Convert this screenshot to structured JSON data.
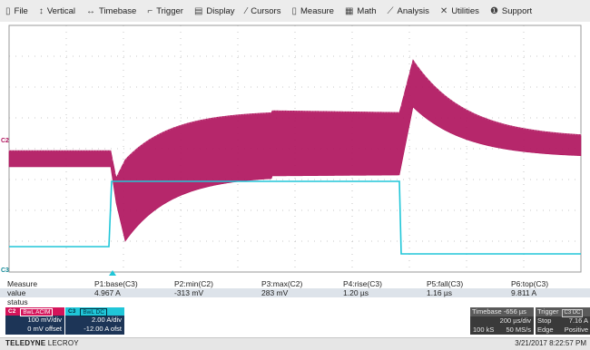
{
  "menu": [
    {
      "label": "File",
      "icon": "file-icon",
      "glyph": "▯"
    },
    {
      "label": "Vertical",
      "icon": "vertical-arrows-icon",
      "glyph": "↕"
    },
    {
      "label": "Timebase",
      "icon": "horizontal-arrows-icon",
      "glyph": "↔"
    },
    {
      "label": "Trigger",
      "icon": "trigger-icon",
      "glyph": "⌐"
    },
    {
      "label": "Display",
      "icon": "display-icon",
      "glyph": "▤"
    },
    {
      "label": "Cursors",
      "icon": "cursor-icon",
      "glyph": "⁄"
    },
    {
      "label": "Measure",
      "icon": "measure-icon",
      "glyph": "▯"
    },
    {
      "label": "Math",
      "icon": "math-icon",
      "glyph": "▦"
    },
    {
      "label": "Analysis",
      "icon": "analysis-icon",
      "glyph": "⟋"
    },
    {
      "label": "Utilities",
      "icon": "utilities-icon",
      "glyph": "✕"
    },
    {
      "label": "Support",
      "icon": "support-icon",
      "glyph": "❶"
    }
  ],
  "grid": {
    "divisions_x": 10,
    "divisions_y": 8
  },
  "traces": {
    "c2": {
      "color": "#b0155e",
      "marker": "C2"
    },
    "c3": {
      "color": "#20c6d8",
      "marker": "C3"
    }
  },
  "measure": {
    "labels": {
      "row0": "Measure",
      "row1": "value",
      "row2": "status"
    },
    "params": [
      {
        "name": "P1:base(C3)",
        "value": "4.967 A"
      },
      {
        "name": "P2:min(C2)",
        "value": "-313 mV"
      },
      {
        "name": "P3:max(C2)",
        "value": "283 mV"
      },
      {
        "name": "P4:rise(C3)",
        "value": "1.20 µs"
      },
      {
        "name": "P5:fall(C3)",
        "value": "1.16 µs"
      },
      {
        "name": "P6:top(C3)",
        "value": "9.811 A"
      }
    ]
  },
  "channels": [
    {
      "tag": "C2",
      "coupling": "BwL ACIM",
      "vdiv": "100 mV/div",
      "offset": "0 mV offset",
      "color": "#d4145a"
    },
    {
      "tag": "C3",
      "coupling": "BwL DC",
      "vdiv": "2.00 A/div",
      "offset": "-12.00 A ofst",
      "color": "#20c6d8"
    }
  ],
  "timebase": {
    "header": "Timebase -656 µs",
    "per_div": "200 µs/div",
    "samples": "100 kS",
    "rate": "50 MS/s"
  },
  "trigger": {
    "header": "Trigger",
    "badge": "C3 DC",
    "mode": "Stop",
    "level": "7.16 A",
    "type": "Edge",
    "slope": "Positive"
  },
  "footer": {
    "brand_bold": "TELEDYNE",
    "brand_light": " LECROY",
    "datetime": "3/21/2017 8:22:57 PM"
  }
}
